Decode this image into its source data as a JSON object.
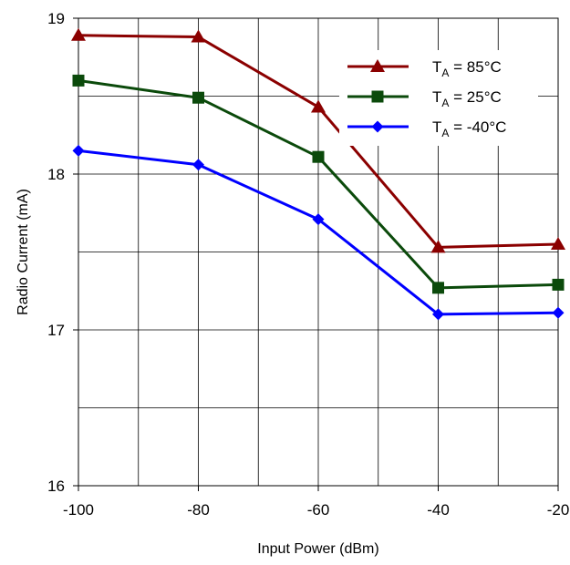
{
  "chart_data": {
    "type": "line",
    "title": "",
    "xlabel": "Input Power (dBm)",
    "ylabel": "Radio Current (mA)",
    "x": [
      -100,
      -80,
      -60,
      -40,
      -20
    ],
    "xlim": [
      -100,
      -20
    ],
    "ylim": [
      16,
      19
    ],
    "x_ticks": [
      -100,
      -80,
      -60,
      -40,
      -20
    ],
    "x_tick_labels": [
      "-100",
      "-80",
      "-60",
      "-40",
      "-20"
    ],
    "y_ticks": [
      16,
      17,
      18,
      19
    ],
    "y_tick_labels": [
      "16",
      "17",
      "18",
      "19"
    ],
    "grid": true,
    "legend_position": "top-right",
    "series": [
      {
        "name": "T_A = 85°C",
        "legend_main": "T",
        "legend_sub": "A",
        "legend_rest": " = 85°C",
        "color": "#8B0000",
        "marker": "triangle",
        "values": [
          18.89,
          18.88,
          18.43,
          17.53,
          17.55
        ]
      },
      {
        "name": "T_A = 25°C",
        "legend_main": "T",
        "legend_sub": "A",
        "legend_rest": " = 25°C",
        "color": "#0B4A0B",
        "marker": "square",
        "values": [
          18.6,
          18.49,
          18.11,
          17.27,
          17.29
        ]
      },
      {
        "name": "T_A = -40°C",
        "legend_main": "T",
        "legend_sub": "A",
        "legend_rest": " = -40°C",
        "color": "#0000FF",
        "marker": "diamond",
        "values": [
          18.15,
          18.06,
          17.71,
          17.1,
          17.11
        ]
      }
    ]
  }
}
